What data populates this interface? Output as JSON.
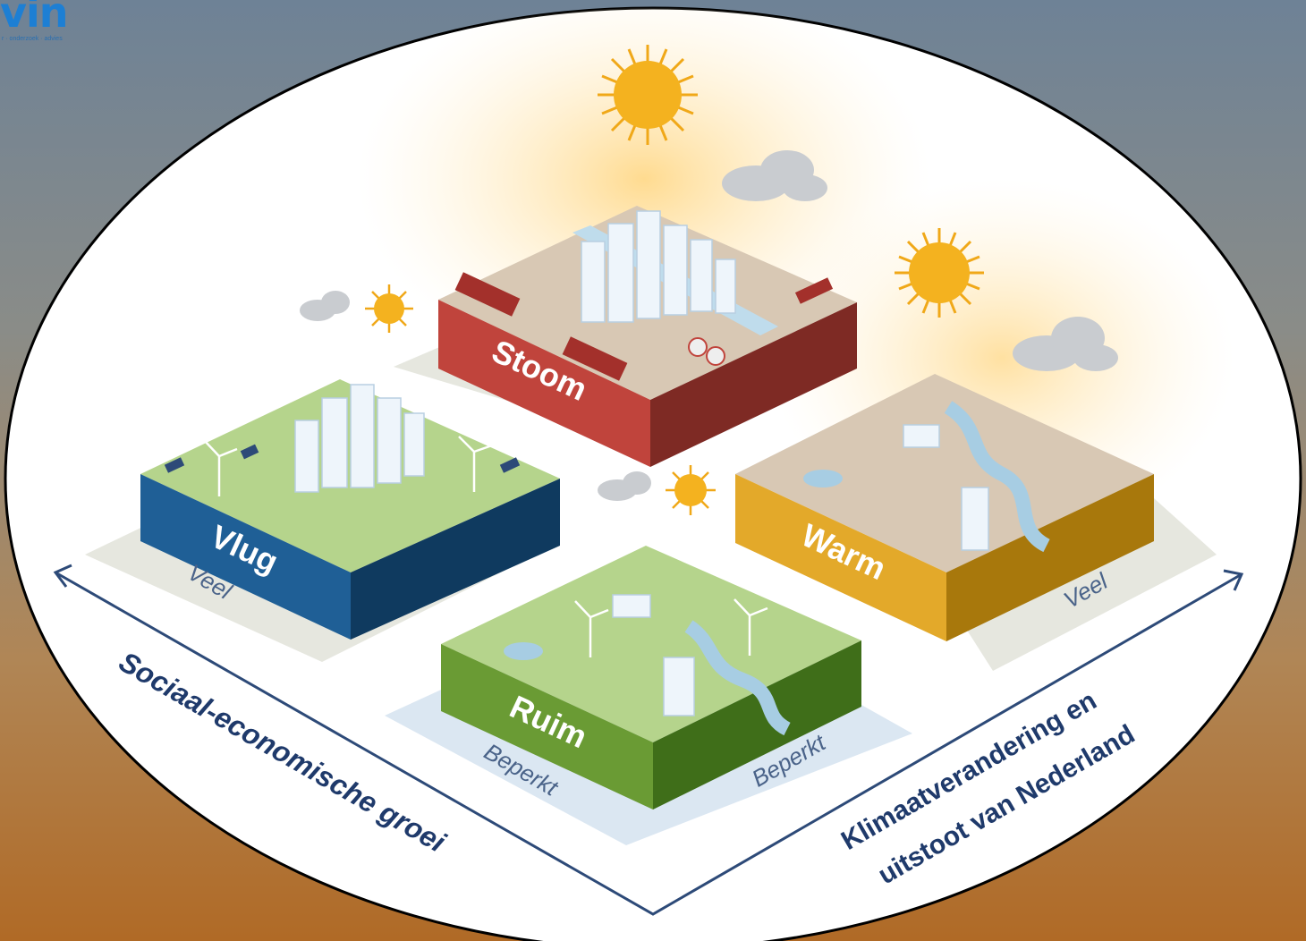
{
  "logo": {
    "text": "vin",
    "tagline": "r · onderzoek · advies"
  },
  "scenarios": {
    "stoom": "Stoom",
    "vlug": "Vlug",
    "warm": "Warm",
    "ruim": "Ruim"
  },
  "axes": {
    "left": {
      "label": "Sociaal-economische groei",
      "high": "Veel",
      "low": "Beperkt"
    },
    "right": {
      "label_line1": "Klimaatverandering en",
      "label_line2": "uitstoot van Nederland",
      "high": "Veel",
      "low": "Beperkt"
    }
  },
  "colors": {
    "stoom": "#c0443c",
    "vlug": "#1f5f96",
    "warm": "#e3a92a",
    "ruim": "#6a9b34",
    "axis": "#2d4a78"
  }
}
